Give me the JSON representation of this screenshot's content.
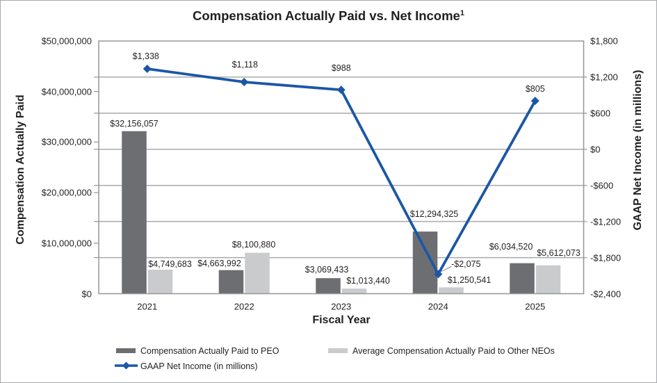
{
  "title": {
    "text": "Compensation Actually Paid vs. Net Income",
    "superscript": "1"
  },
  "chart_data": {
    "type": "combo",
    "title": "Compensation Actually Paid vs. Net Income",
    "categories": [
      "2021",
      "2022",
      "2023",
      "2024",
      "2025"
    ],
    "x_axis_label": "Fiscal Year",
    "grid": "horizontal",
    "legend_position": "bottom-left",
    "left_axis": {
      "label": "Compensation Actually Paid",
      "min": 0,
      "max": 50000000,
      "tick_step": 10000000,
      "ticks": [
        "$50,000,000",
        "$40,000,000",
        "$30,000,000",
        "$20,000,000",
        "$10,000,000",
        "$0"
      ]
    },
    "right_axis": {
      "label": "GAAP Net Income (in millions)",
      "min": -2400,
      "max": 1800,
      "tick_step": 600,
      "ticks": [
        "$1,800",
        "$1,200",
        "$600",
        "$0",
        "-$600",
        "-$1,200",
        "-$1,800",
        "-$2,400"
      ]
    },
    "series": [
      {
        "name": "Compensation Actually Paid to PEO",
        "type": "bar",
        "axis": "left",
        "color": "#6D6E71",
        "values": [
          32156057,
          4663992,
          3069433,
          12294325,
          6034520
        ],
        "labels": [
          "$32,156,057",
          "$4,663,992",
          "$3,069,433",
          "$12,294,325",
          "$6,034,520"
        ]
      },
      {
        "name": "Average Compensation Actually Paid to Other NEOs",
        "type": "bar",
        "axis": "left",
        "color": "#C9CBCD",
        "values": [
          4749683,
          8100880,
          1013440,
          1250541,
          5612073
        ],
        "labels": [
          "$4,749,683",
          "$8,100,880",
          "$1,013,440",
          "$1,250,541",
          "$5,612,073"
        ]
      },
      {
        "name": "GAAP Net Income (in millions)",
        "type": "line",
        "axis": "right",
        "marker": "diamond",
        "color": "#1B57A6",
        "values": [
          1338,
          1118,
          988,
          -2075,
          805
        ],
        "labels": [
          "$1,338",
          "$1,118",
          "$988",
          "-$2,075",
          "$805"
        ]
      }
    ]
  },
  "colors": {
    "text": "#231F20",
    "gridline": "#A7A9AC",
    "axis_line": "#939598",
    "callout_leader": "#808285",
    "background": "#FFFFFF"
  }
}
